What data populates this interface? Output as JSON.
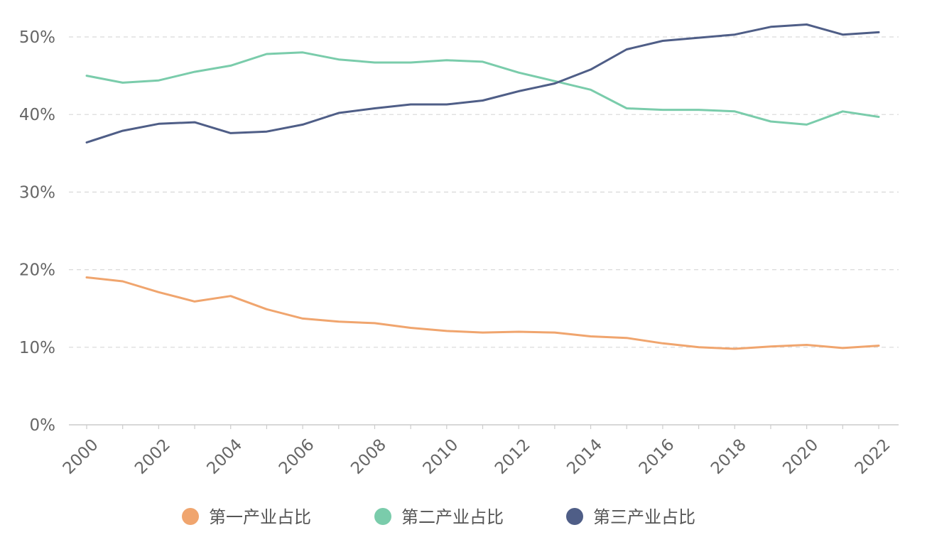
{
  "chart_data": {
    "type": "line",
    "title": "",
    "xlabel": "",
    "ylabel": "",
    "x": [
      "2000",
      "2001",
      "2002",
      "2003",
      "2004",
      "2005",
      "2006",
      "2007",
      "2008",
      "2009",
      "2010",
      "2011",
      "2012",
      "2013",
      "2014",
      "2015",
      "2016",
      "2017",
      "2018",
      "2019",
      "2020",
      "2021",
      "2022"
    ],
    "x_tick_labels": [
      "2000",
      "2002",
      "2004",
      "2006",
      "2008",
      "2010",
      "2012",
      "2014",
      "2016",
      "2018",
      "2020",
      "2022"
    ],
    "y_tick_labels": [
      "0%",
      "10%",
      "20%",
      "30%",
      "40%",
      "50%"
    ],
    "ylim": [
      0,
      50
    ],
    "grid": true,
    "legend_position": "bottom",
    "series": [
      {
        "name": "第一产业占比",
        "color": "#F0A56E",
        "values": [
          19.0,
          18.5,
          17.1,
          15.9,
          16.6,
          14.9,
          13.7,
          13.3,
          13.1,
          12.5,
          12.1,
          11.9,
          12.0,
          11.9,
          11.4,
          11.2,
          10.5,
          10.0,
          9.8,
          10.1,
          10.3,
          9.9,
          10.2
        ]
      },
      {
        "name": "第二产业占比",
        "color": "#7ACCAB",
        "values": [
          45.0,
          44.1,
          44.4,
          45.5,
          46.3,
          47.8,
          48.0,
          47.1,
          46.7,
          46.7,
          47.0,
          46.8,
          45.4,
          44.3,
          43.2,
          40.8,
          40.6,
          40.6,
          40.4,
          39.1,
          38.7,
          40.4,
          39.7
        ]
      },
      {
        "name": "第三产业占比",
        "color": "#4F5E87",
        "values": [
          36.4,
          37.9,
          38.8,
          39.0,
          37.6,
          37.8,
          38.7,
          40.2,
          40.8,
          41.3,
          41.3,
          41.8,
          43.0,
          44.0,
          45.8,
          48.4,
          49.5,
          49.9,
          50.3,
          51.3,
          51.6,
          50.3,
          50.6
        ]
      }
    ]
  },
  "styles": {
    "grid_color": "#d9d9d9",
    "axis_color": "#cccccc"
  }
}
